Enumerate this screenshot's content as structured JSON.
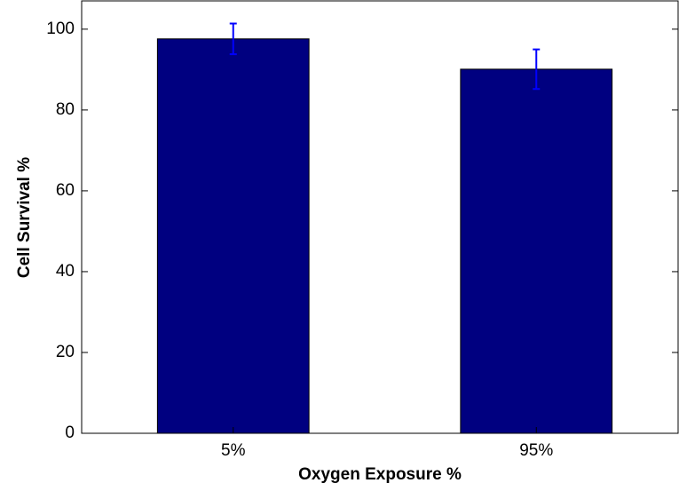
{
  "chart_data": {
    "type": "bar",
    "x_label": "Oxygen Exposure %",
    "y_label": "Cell Survival %",
    "categories": [
      "5%",
      "95%"
    ],
    "values": [
      97.6,
      90.1
    ],
    "errors": [
      3.8,
      4.9
    ],
    "color": "#000080",
    "error_color": "#0000ff",
    "ylim": [
      0,
      107
    ],
    "yticks": [
      0,
      20,
      40,
      60,
      80,
      100
    ],
    "grid": false
  }
}
